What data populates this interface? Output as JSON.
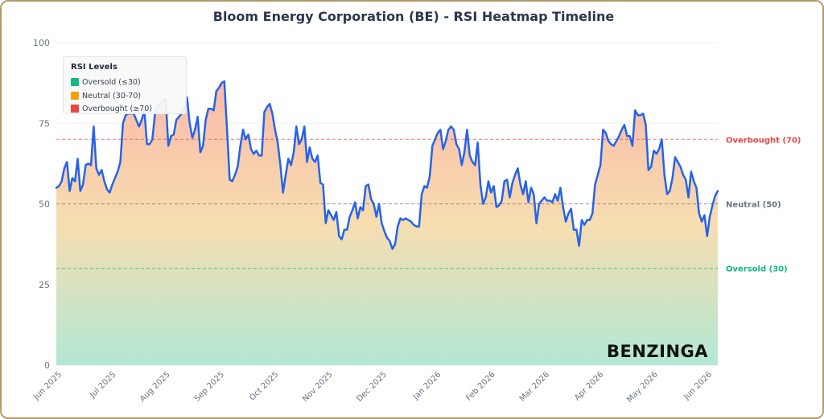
{
  "chart_data": {
    "type": "line",
    "title": "Bloom Energy Corporation (BE) - RSI Heatmap Timeline",
    "ylim": [
      0,
      100
    ],
    "yticks": [
      0,
      25,
      50,
      75,
      100
    ],
    "x_tick_labels": [
      "Jun 2025",
      "Jul 2025",
      "Aug 2025",
      "Sep 2025",
      "Oct 2025",
      "Nov 2025",
      "Dec 2025",
      "Jan 2026",
      "Feb 2026",
      "Mar 2026",
      "Apr 2026",
      "May 2026",
      "Jun 2026"
    ],
    "reference_lines": [
      {
        "label": "Overbought (70)",
        "value": 70,
        "color": "#ef4444"
      },
      {
        "label": "Neutral (50)",
        "value": 50,
        "color": "#6b7280"
      },
      {
        "label": "Oversold (30)",
        "value": 30,
        "color": "#10b981"
      }
    ],
    "line_color": "#2563eb",
    "fill_gradient": {
      "top": "#fbb9a8",
      "middle": "#f7ddb0",
      "bottom": "#b3e8d4"
    },
    "legend": {
      "title": "RSI Levels",
      "position": "top-left",
      "items": [
        {
          "label": "Oversold (≤30)",
          "color": "#10b981"
        },
        {
          "label": "Neutral (30-70)",
          "color": "#f59e0b"
        },
        {
          "label": "Overbought (≥70)",
          "color": "#ef4444"
        }
      ]
    },
    "series": [
      {
        "values": [
          55,
          55.5,
          57,
          61,
          63,
          54,
          58,
          57,
          64,
          54,
          56,
          62,
          62.5,
          62,
          74,
          61,
          59,
          60.5,
          57,
          54.5,
          53.5,
          56,
          58,
          60,
          63,
          75,
          77.5,
          78,
          78,
          78,
          76,
          74,
          76,
          79,
          68.5,
          68.5,
          70,
          78,
          80,
          81,
          82,
          82.5,
          68,
          71,
          71.5,
          76,
          77,
          78,
          79,
          83,
          75,
          70.5,
          73,
          77,
          66,
          68,
          76,
          79.5,
          79.5,
          79,
          85,
          86,
          87.5,
          88,
          73,
          57.5,
          57,
          59,
          61.5,
          68,
          73,
          70,
          71.5,
          67,
          65.5,
          66.5,
          65,
          65,
          78.5,
          80,
          81,
          78,
          73,
          69,
          62,
          53.5,
          59,
          64,
          62,
          66,
          74,
          68.5,
          70,
          74,
          63,
          67.5,
          64,
          63,
          65,
          56.5,
          56,
          44,
          48,
          46.5,
          45,
          47.5,
          40,
          39,
          42,
          42,
          46,
          48,
          50.5,
          45.5,
          49,
          48,
          55.5,
          56,
          51.5,
          50,
          46,
          50,
          44,
          41.5,
          39.5,
          38.5,
          36,
          37.5,
          43,
          45.5,
          45,
          45.5,
          45,
          44.5,
          43.5,
          43,
          43,
          53,
          55.5,
          55,
          58.5,
          68,
          70,
          72,
          73,
          67,
          69.5,
          73,
          74,
          73,
          68.5,
          67,
          62,
          66,
          73,
          65,
          63,
          62,
          69,
          56,
          50,
          52,
          57,
          53.5,
          55.5,
          49,
          49.5,
          51,
          57,
          57.5,
          52,
          56.5,
          59,
          61,
          56,
          53,
          57,
          50.5,
          55,
          53,
          44,
          50,
          51,
          52,
          51,
          51,
          50.5,
          53,
          51,
          55,
          49,
          44.5,
          47,
          48.5,
          42,
          42,
          37,
          45,
          43.5,
          45,
          45,
          47,
          56,
          59,
          62,
          73,
          72,
          69.5,
          68.5,
          68,
          69.5,
          71,
          73,
          74.5,
          71,
          71,
          68,
          79,
          77.5,
          77.5,
          78,
          74.5,
          60.5,
          61.5,
          66.5,
          65.5,
          67,
          70,
          59,
          53,
          54,
          58,
          64.5,
          63,
          61.5,
          59,
          57.5,
          52,
          60,
          57,
          55,
          47,
          44.5,
          46.5,
          40,
          46,
          49.5,
          52.5,
          54
        ]
      }
    ]
  }
}
